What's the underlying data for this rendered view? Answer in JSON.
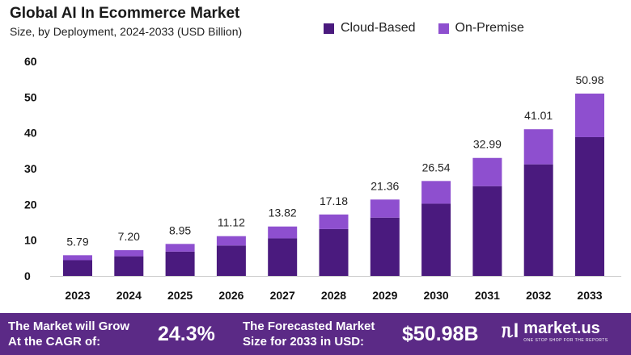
{
  "header": {
    "title": "Global AI In Ecommerce Market",
    "subtitle": "Size, by Deployment, 2024-2033 (USD Billion)"
  },
  "legend": {
    "items": [
      {
        "label": "Cloud-Based",
        "color": "#4a1a7e"
      },
      {
        "label": "On-Premise",
        "color": "#8e4fcf"
      }
    ]
  },
  "chart_data": {
    "type": "bar",
    "stacked": true,
    "categories": [
      "2023",
      "2024",
      "2025",
      "2026",
      "2027",
      "2028",
      "2029",
      "2030",
      "2031",
      "2032",
      "2033"
    ],
    "series": [
      {
        "name": "Cloud-Based",
        "color": "#4a1a7e",
        "values": [
          4.4,
          5.5,
          6.8,
          8.5,
          10.5,
          13.1,
          16.3,
          20.2,
          25.1,
          31.2,
          38.8
        ]
      },
      {
        "name": "On-Premise",
        "color": "#8e4fcf",
        "values": [
          1.39,
          1.7,
          2.15,
          2.62,
          3.32,
          4.08,
          5.06,
          6.34,
          7.89,
          9.81,
          12.18
        ]
      }
    ],
    "totals": [
      "5.79",
      "7.20",
      "8.95",
      "11.12",
      "13.82",
      "17.18",
      "21.36",
      "26.54",
      "32.99",
      "41.01",
      "50.98"
    ],
    "yticks": [
      "0",
      "10",
      "20",
      "30",
      "40",
      "50",
      "60"
    ],
    "ylim": [
      0,
      60
    ],
    "grid": false,
    "legend_position": "top-right"
  },
  "footer": {
    "cagr_label_line1": "The Market will Grow",
    "cagr_label_line2": "At the CAGR of:",
    "cagr_value": "24.3%",
    "forecast_label_line1": "The Forecasted Market",
    "forecast_label_line2": "Size for 2033 in USD:",
    "forecast_value": "$50.98B",
    "brand_name": "market.us",
    "brand_tagline": "ONE STOP SHOP FOR THE REPORTS"
  }
}
